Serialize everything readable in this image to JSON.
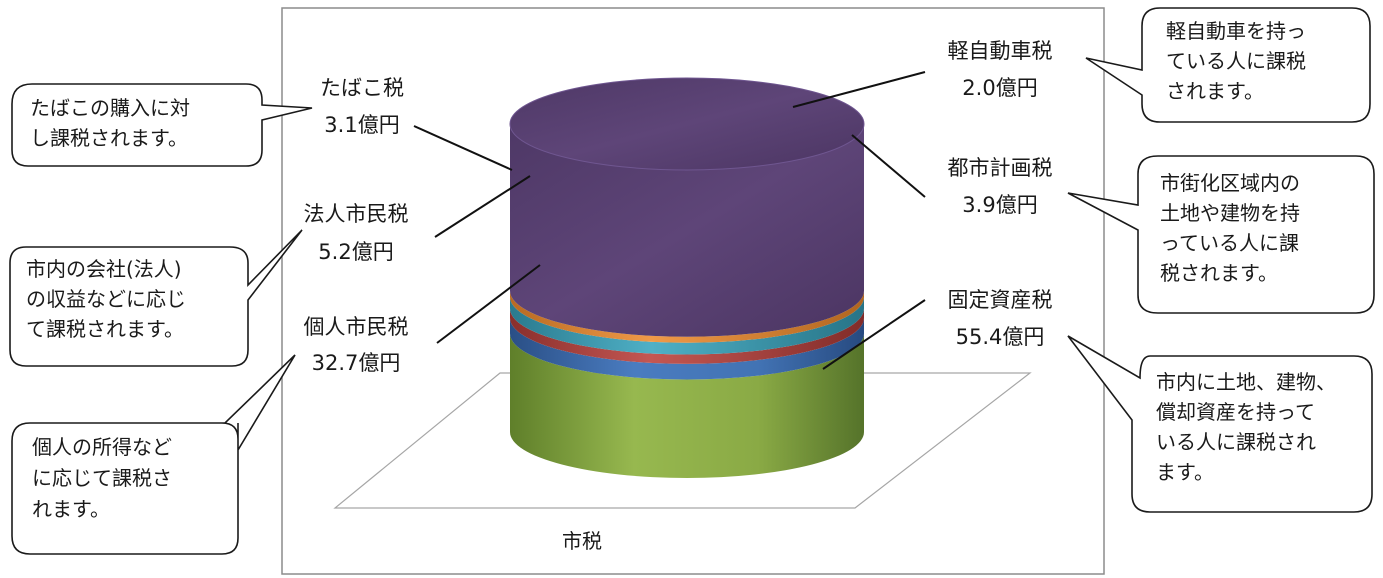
{
  "chart_data": {
    "type": "bar",
    "title": "",
    "xlabel": "",
    "ylabel": "",
    "categories": [
      "市税"
    ],
    "unit": "億円",
    "series": [
      {
        "name": "個人市民税",
        "values": [
          32.7
        ],
        "label": "32.7億円",
        "color": "#8fae4a"
      },
      {
        "name": "法人市民税",
        "values": [
          5.2
        ],
        "label": "5.2億円",
        "color": "#3f6fb0"
      },
      {
        "name": "たばこ税",
        "values": [
          3.1
        ],
        "label": "3.1億円",
        "color": "#b64a46"
      },
      {
        "name": "都市計画税",
        "values": [
          3.9
        ],
        "label": "3.9億円",
        "color": "#3d9cb3"
      },
      {
        "name": "軽自動車税",
        "values": [
          2.0
        ],
        "label": "2.0億円",
        "color": "#e08a3a"
      },
      {
        "name": "固定資産税",
        "values": [
          55.4
        ],
        "label": "55.4億円",
        "color": "#5a4272"
      }
    ]
  },
  "callouts": {
    "tobacco": [
      "たばこの購入に対",
      "し課税されます。"
    ],
    "corporate": [
      "市内の会社(法人)",
      "の収益などに応じ",
      "て課税されます。"
    ],
    "individual": [
      "個人の所得など",
      "に応じて課税さ",
      "れます。"
    ],
    "light_vehicle": [
      "軽自動車を持っ",
      "ている人に課税",
      "されます。"
    ],
    "city_planning": [
      "市街化区域内の",
      "土地や建物を持",
      "っている人に課",
      "税されます。"
    ],
    "fixed_asset": [
      "市内に土地、建物、",
      "償却資産を持って",
      "いる人に課税され",
      "ます。"
    ]
  }
}
